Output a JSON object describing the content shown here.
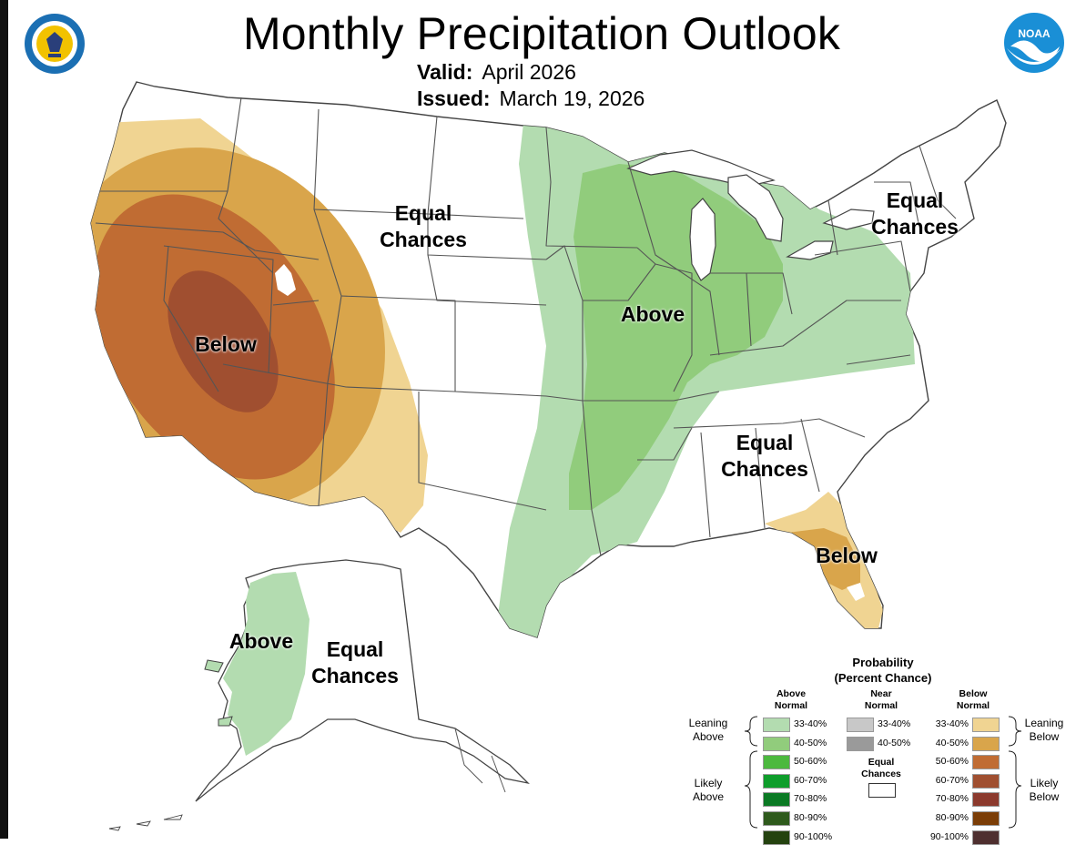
{
  "header": {
    "title": "Monthly Precipitation Outlook",
    "valid_label": "Valid:",
    "valid_value": "April 2026",
    "issued_label": "Issued:",
    "issued_value": "March 19, 2026"
  },
  "logos": {
    "left": "department-of-commerce-seal",
    "right": "NOAA",
    "left_text": "DEPARTMENT OF COMMERCE · UNITED STATES OF AMERICA"
  },
  "map_labels": {
    "west": "Below",
    "north_central": [
      "Equal",
      "Chances"
    ],
    "midwest": "Above",
    "northeast": [
      "Equal",
      "Chances"
    ],
    "southeast": [
      "Equal",
      "Chances"
    ],
    "florida": "Below",
    "alaska_west": "Above",
    "alaska_main": [
      "Equal",
      "Chances"
    ]
  },
  "legend": {
    "title_line1": "Probability",
    "title_line2": "(Percent Chance)",
    "above_head": [
      "Above",
      "Normal"
    ],
    "near_head": [
      "Near",
      "Normal"
    ],
    "below_head": [
      "Below",
      "Normal"
    ],
    "leaning_above": [
      "Leaning",
      "Above"
    ],
    "likely_above": [
      "Likely",
      "Above"
    ],
    "leaning_below": [
      "Leaning",
      "Below"
    ],
    "likely_below": [
      "Likely",
      "Below"
    ],
    "equal_chances": [
      "Equal",
      "Chances"
    ],
    "above": [
      {
        "range": "33-40%",
        "color": "#b3dcb0"
      },
      {
        "range": "40-50%",
        "color": "#91cc7c"
      },
      {
        "range": "50-60%",
        "color": "#4cb93e"
      },
      {
        "range": "60-70%",
        "color": "#0e9e2b"
      },
      {
        "range": "70-80%",
        "color": "#0b7a24"
      },
      {
        "range": "80-90%",
        "color": "#2e5a1c"
      },
      {
        "range": "90-100%",
        "color": "#24420f"
      }
    ],
    "near": [
      {
        "range": "33-40%",
        "color": "#c8c8c8"
      },
      {
        "range": "40-50%",
        "color": "#9a9a9a"
      }
    ],
    "below": [
      {
        "range": "33-40%",
        "color": "#f0d492"
      },
      {
        "range": "40-50%",
        "color": "#d9a54b"
      },
      {
        "range": "50-60%",
        "color": "#c06c33"
      },
      {
        "range": "60-70%",
        "color": "#a04f30"
      },
      {
        "range": "70-80%",
        "color": "#8c3a2d"
      },
      {
        "range": "80-90%",
        "color": "#7b3d06"
      },
      {
        "range": "90-100%",
        "color": "#4e2f2f"
      }
    ]
  }
}
